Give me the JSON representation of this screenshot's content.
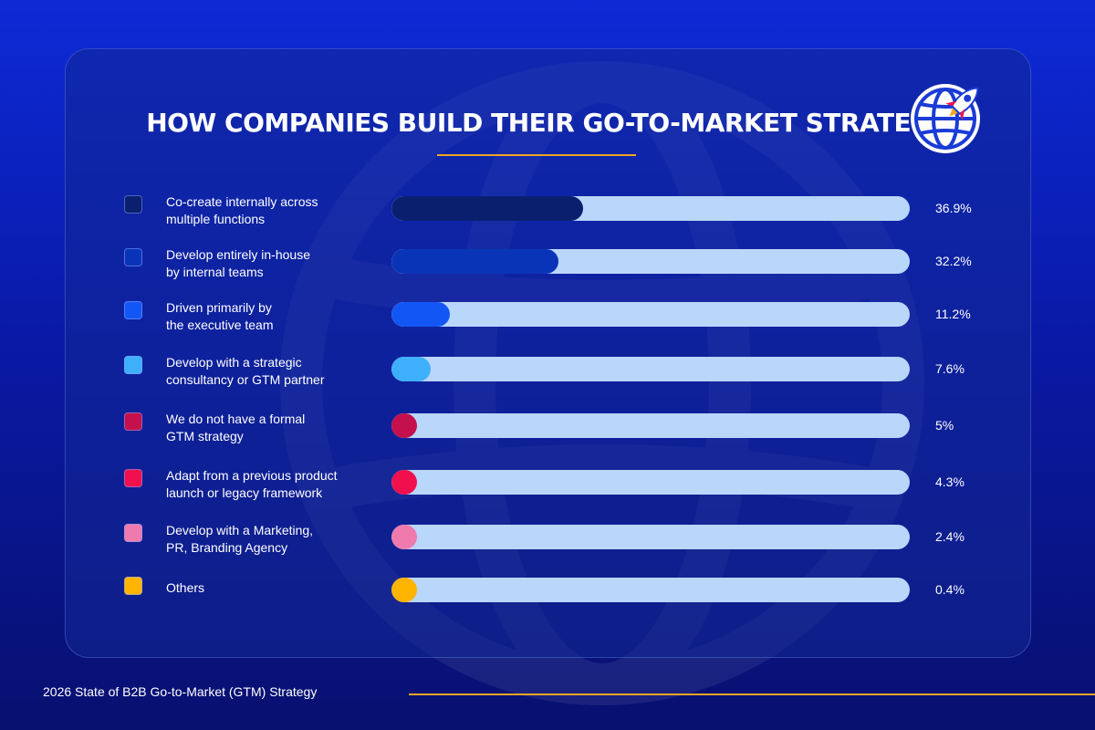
{
  "chart_data": {
    "type": "bar",
    "orientation": "horizontal",
    "title": "HOW COMPANIES BUILD THEIR GO-TO-MARKET STRATEGY",
    "unit": "%",
    "xlim": [
      0,
      100
    ],
    "categories": [
      {
        "line1": "Co-create internally across",
        "line2": "multiple functions"
      },
      {
        "line1": "Develop entirely in-house",
        "line2": "by internal teams"
      },
      {
        "line1": "Driven primarily by",
        "line2": "the executive team"
      },
      {
        "line1": "Develop with a strategic",
        "line2": "consultancy or GTM partner"
      },
      {
        "line1": "We do not have a formal",
        "line2": "GTM strategy"
      },
      {
        "line1": "Adapt from a previous product",
        "line2": "launch or legacy framework"
      },
      {
        "line1": "Develop with a Marketing,",
        "line2": "PR, Branding Agency"
      },
      {
        "line1": "Others",
        "line2": ""
      }
    ],
    "values": [
      36.9,
      32.2,
      11.2,
      7.6,
      5,
      4.3,
      2.4,
      0.4
    ],
    "value_labels": [
      "36.9%",
      "32.2%",
      "11.2%",
      "7.6%",
      "5%",
      "4.3%",
      "2.4%",
      "0.4%"
    ],
    "colors": [
      "#0a1f6e",
      "#0a34b8",
      "#1257f5",
      "#3eb0fb",
      "#c4104d",
      "#f0104e",
      "#ef7aad",
      "#ffb400"
    ],
    "track_color": "#b9d6fb"
  },
  "footer": {
    "text": "2026 State of B2B Go-to-Market (GTM) Strategy"
  },
  "brand": {
    "logo_icon": "globe-rocket-icon",
    "accent": "#f5a524"
  }
}
